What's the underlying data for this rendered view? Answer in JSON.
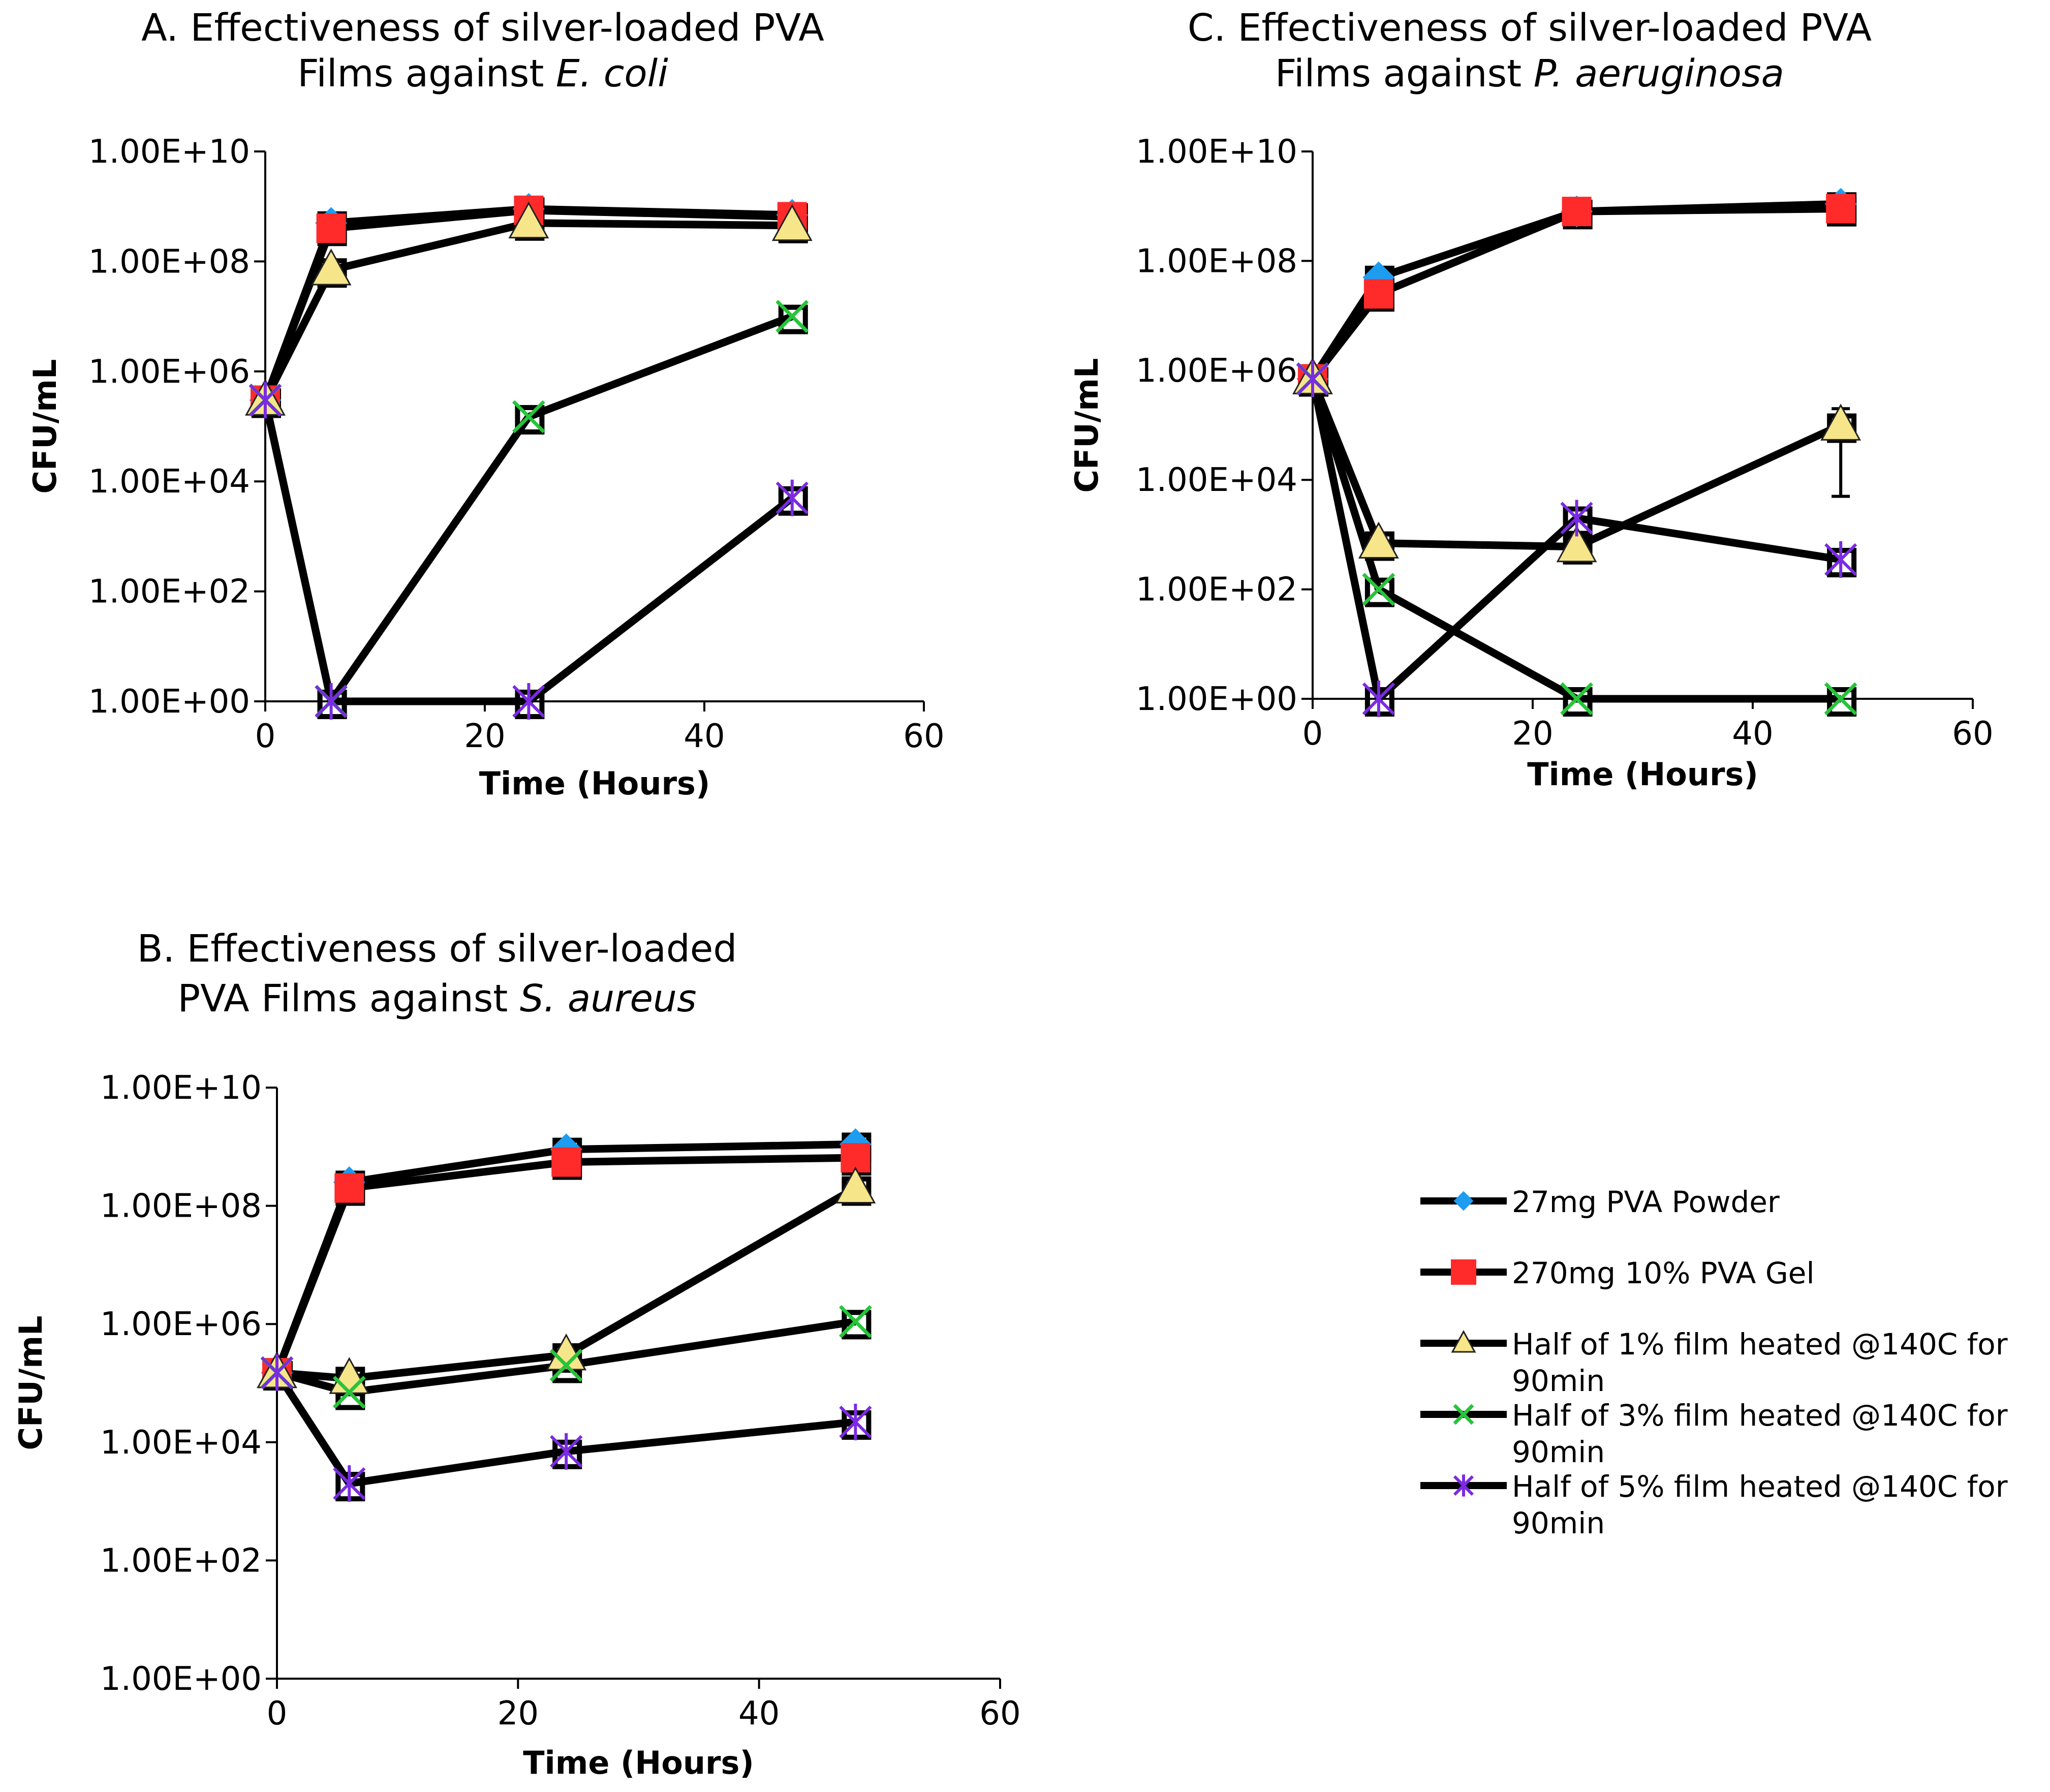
{
  "legend": {
    "entries": [
      {
        "name": "27mg PVA Powder",
        "lines": [
          "27mg PVA Powder"
        ],
        "marker": "diamond",
        "color": "#1e9cf0"
      },
      {
        "name": "270mg 10% PVA Gel",
        "lines": [
          "270mg 10% PVA Gel"
        ],
        "marker": "square",
        "color": "#ff2b2b"
      },
      {
        "name": "Half of 1% film heated @140C for 90min",
        "lines": [
          "Half of 1% film heated @140C for",
          "90min"
        ],
        "marker": "triangle",
        "color": "#f7e58a"
      },
      {
        "name": "Half of 3% film heated @140C for 90min",
        "lines": [
          "Half of 3% film heated @140C for",
          "90min"
        ],
        "marker": "x",
        "color": "#27c43a"
      },
      {
        "name": "Half of 5% film heated @140C for 90min",
        "lines": [
          "Half of 5% film heated @140C for",
          "90min"
        ],
        "marker": "star",
        "color": "#7a2be2"
      }
    ]
  },
  "chart_data": [
    {
      "id": "A",
      "type": "line",
      "title_line1": "A. Effectiveness of silver-loaded PVA",
      "title_line2_plain": "Films against ",
      "title_line2_italic": "E. coli",
      "xlabel": "Time (Hours)",
      "ylabel": "CFU/mL",
      "xlim": [
        0,
        60
      ],
      "ylim": [
        1,
        10000000000.0
      ],
      "yscale": "log",
      "xticks": [
        "0",
        "20",
        "40",
        "60"
      ],
      "yticks": [
        "1.00E+00",
        "1.00E+02",
        "1.00E+04",
        "1.00E+06",
        "1.00E+08",
        "1.00E+10"
      ],
      "x": [
        0,
        6,
        24,
        48
      ],
      "series": [
        {
          "name": "27mg PVA Powder",
          "values": [
            300000,
            500000000,
            900000000,
            700000000
          ]
        },
        {
          "name": "270mg 10% PVA Gel",
          "values": [
            300000,
            400000000,
            850000000,
            650000000
          ]
        },
        {
          "name": "Half of 1% film heated @140C for 90min",
          "values": [
            300000,
            70000000,
            500000000,
            450000000
          ]
        },
        {
          "name": "Half of 3% film heated @140C for 90min",
          "values": [
            300000,
            1,
            150000,
            10000000
          ]
        },
        {
          "name": "Half of 5% film heated @140C for 90min",
          "values": [
            300000,
            1,
            1,
            5000
          ]
        }
      ]
    },
    {
      "id": "B",
      "type": "line",
      "title_line1": "B. Effectiveness of silver-loaded",
      "title_line2_plain": "PVA Films against ",
      "title_line2_italic": "S. aureus",
      "xlabel": "Time (Hours)",
      "ylabel": "CFU/mL",
      "xlim": [
        0,
        60
      ],
      "ylim": [
        1,
        10000000000.0
      ],
      "yscale": "log",
      "xticks": [
        "0",
        "20",
        "40",
        "60"
      ],
      "yticks": [
        "1.00E+00",
        "1.00E+02",
        "1.00E+04",
        "1.00E+06",
        "1.00E+08",
        "1.00E+10"
      ],
      "x": [
        0,
        6,
        24,
        48
      ],
      "series": [
        {
          "name": "27mg PVA Powder",
          "values": [
            150000,
            250000000,
            900000000,
            1100000000
          ]
        },
        {
          "name": "270mg 10% PVA Gel",
          "values": [
            150000,
            200000000,
            550000000,
            650000000
          ]
        },
        {
          "name": "Half of 1% film heated @140C for 90min",
          "values": [
            150000,
            120000,
            300000,
            200000000
          ]
        },
        {
          "name": "Half of 3% film heated @140C for 90min",
          "values": [
            150000,
            70000,
            200000,
            1100000
          ]
        },
        {
          "name": "Half of 5% film heated @140C for 90min",
          "values": [
            150000,
            2000,
            7000,
            22000
          ]
        }
      ]
    },
    {
      "id": "C",
      "type": "line",
      "title_line1": "C. Effectiveness of silver-loaded PVA",
      "title_line2_plain": "Films against ",
      "title_line2_italic": "P. aeruginosa",
      "xlabel": "Time (Hours)",
      "ylabel": "CFU/mL",
      "xlim": [
        0,
        60
      ],
      "ylim": [
        1,
        10000000000.0
      ],
      "yscale": "log",
      "xticks": [
        "0",
        "20",
        "40",
        "60"
      ],
      "yticks": [
        "1.00E+00",
        "1.00E+02",
        "1.00E+04",
        "1.00E+06",
        "1.00E+08",
        "1.00E+10"
      ],
      "x": [
        0,
        6,
        24,
        48
      ],
      "series": [
        {
          "name": "27mg PVA Powder",
          "values": [
            700000,
            50000000,
            800000000,
            1100000000
          ]
        },
        {
          "name": "270mg 10% PVA Gel",
          "values": [
            700000,
            25000000,
            800000000,
            900000000
          ]
        },
        {
          "name": "Half of 1% film heated @140C for 90min",
          "values": [
            700000,
            700,
            600,
            100000
          ]
        },
        {
          "name": "Half of 3% film heated @140C for 90min",
          "values": [
            700000,
            100,
            1,
            1
          ]
        },
        {
          "name": "Half of 5% film heated @140C for 90min",
          "values": [
            700000,
            1,
            2000,
            350
          ]
        }
      ],
      "error_bars": [
        {
          "series": "Half of 1% film heated @140C for 90min",
          "x": 48,
          "low": 5000,
          "high": 200000
        }
      ]
    }
  ]
}
